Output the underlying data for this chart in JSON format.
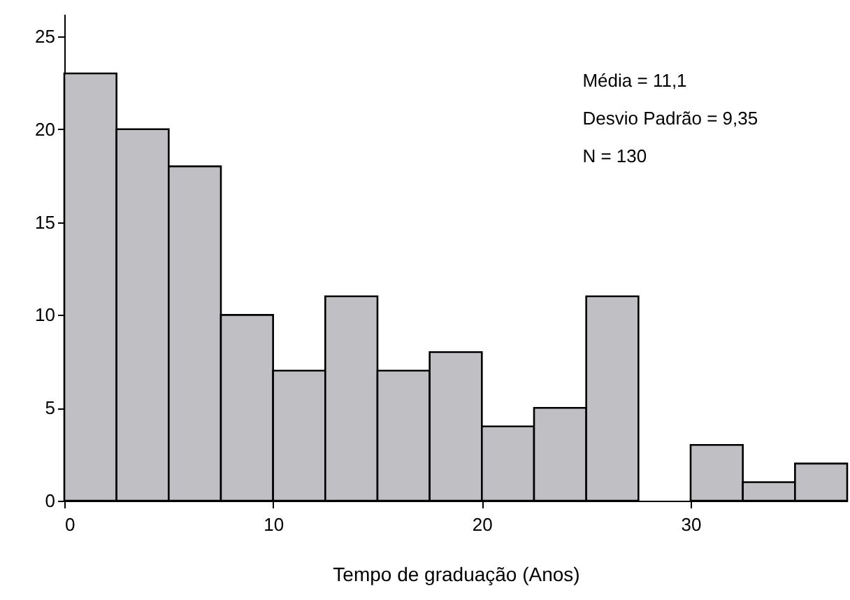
{
  "chart_data": {
    "type": "histogram",
    "xlabel": "Tempo de graduação (Anos)",
    "bins": [
      0,
      2.5,
      5,
      7.5,
      10,
      12.5,
      15,
      17.5,
      20,
      22.5,
      25,
      27.5,
      30,
      32.5,
      35,
      37.5
    ],
    "values": [
      23,
      20,
      18,
      10,
      7,
      11,
      7,
      8,
      4,
      5,
      11,
      0,
      3,
      1,
      2
    ],
    "color": "#c0c0c4",
    "xlim": [
      0,
      37.5
    ],
    "xticks": [
      0,
      10,
      20,
      30
    ],
    "ylim": [
      0,
      26.2
    ],
    "yticks": [
      0,
      5,
      10,
      15,
      20,
      25
    ],
    "annotations": [
      "Média = 11,1",
      "Desvio Padrão = 9,35",
      "N = 130"
    ]
  }
}
